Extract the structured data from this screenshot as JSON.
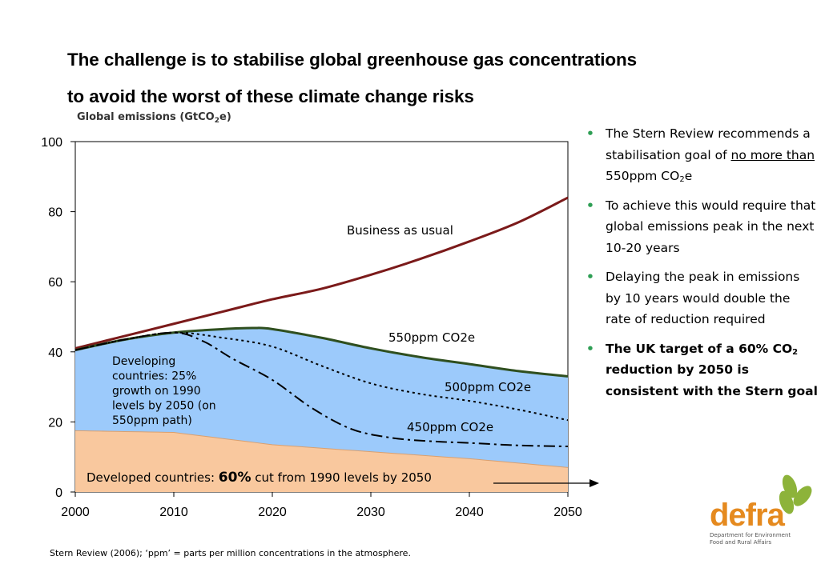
{
  "title_line1": "The challenge is to stabilise global greenhouse gas concentrations",
  "title_line2": "to avoid the worst of these climate change risks",
  "bullets": [
    {
      "parts": [
        "The Stern Review recommends a stabilisation goal of ",
        "no more than",
        " 550ppm CO",
        "2",
        "e"
      ]
    },
    {
      "text": "To achieve this would require that global emissions peak in the next 10-20 years"
    },
    {
      "text": "Delaying the peak in emissions by 10 years would double the rate of reduction required"
    },
    {
      "parts": [
        "The UK target of a 60% CO",
        "2",
        " reduction by 2050 is consistent with the Stern goal"
      ]
    }
  ],
  "footnote": "Stern Review (2006); ‘ppm’ = parts per million concentrations in the atmosphere.",
  "logo": {
    "word": "defra",
    "sub1": "Department for Environment",
    "sub2": "Food and Rural Affairs",
    "color": "#e58a1f",
    "leaf_color": "#8db33a"
  },
  "chart_data": {
    "type": "area",
    "ylabel": "Global emissions (GtCO2e)",
    "xlim": [
      2000,
      2050
    ],
    "ylim": [
      0,
      100
    ],
    "xticks": [
      2000,
      2010,
      2020,
      2030,
      2040,
      2050
    ],
    "yticks": [
      0,
      20,
      40,
      60,
      80,
      100
    ],
    "grid": false,
    "series": [
      {
        "name": "Business as usual",
        "color": "#7b1a1a",
        "style": "solid",
        "x": [
          2000,
          2005,
          2010,
          2015,
          2020,
          2025,
          2030,
          2035,
          2040,
          2045,
          2050
        ],
        "y": [
          41,
          44.5,
          48,
          51.5,
          55,
          58,
          62,
          66.5,
          71.5,
          77,
          84
        ]
      },
      {
        "name": "550ppm CO2e",
        "color": "#2f4f1f",
        "style": "solid",
        "x": [
          2000,
          2005,
          2010,
          2015,
          2018,
          2020,
          2025,
          2030,
          2035,
          2040,
          2045,
          2050
        ],
        "y": [
          40.5,
          43.5,
          45.5,
          46.5,
          46.8,
          46.5,
          44,
          41,
          38.5,
          36.5,
          34.5,
          33
        ]
      },
      {
        "name": "500ppm CO2e",
        "color": "#000000",
        "style": "dotted",
        "x": [
          2000,
          2005,
          2010,
          2015,
          2020,
          2025,
          2030,
          2035,
          2040,
          2045,
          2050
        ],
        "y": [
          40.5,
          43.5,
          45.5,
          44,
          41.5,
          36,
          31,
          28,
          26,
          23.5,
          20.5
        ]
      },
      {
        "name": "450ppm CO2e",
        "color": "#000000",
        "style": "dashdot",
        "x": [
          2000,
          2005,
          2010,
          2013,
          2016,
          2020,
          2024,
          2028,
          2032,
          2036,
          2040,
          2045,
          2050
        ],
        "y": [
          40.5,
          43.5,
          45.5,
          43,
          38,
          32,
          24,
          18,
          15.5,
          14.5,
          14,
          13.3,
          13
        ]
      },
      {
        "name": "Developed countries",
        "color": "#f9c89e",
        "style": "fill",
        "x": [
          2000,
          2010,
          2020,
          2030,
          2040,
          2050
        ],
        "y": [
          17.5,
          17,
          13.5,
          11.5,
          9.5,
          7
        ]
      }
    ],
    "developing_fill_color": "#9ccafb",
    "annotations": {
      "bau": "Business as usual",
      "s550": "550ppm CO2e",
      "s500": "500ppm CO2e",
      "s450": "450ppm CO2e",
      "developing": [
        "Developing",
        "countries: 25%",
        "growth on 1990",
        "levels by 2050 (on",
        "550ppm path)"
      ],
      "developed_a": "Developed countries: ",
      "developed_b": "60%",
      "developed_c": " cut from 1990 levels by 2050"
    }
  }
}
